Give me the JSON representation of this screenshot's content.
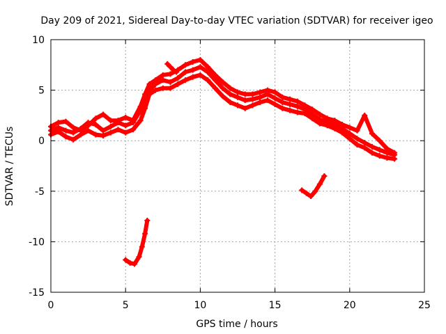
{
  "chart_data": {
    "type": "scatter",
    "title": "Day 209 of 2021, Sidereal Day-to-day VTEC variation (SDTVAR) for receiver igeo",
    "xlabel": "GPS time / hours",
    "ylabel": "SDTVAR / TECUs",
    "xlim": [
      0,
      25
    ],
    "ylim": [
      -15,
      10
    ],
    "xticks": [
      0,
      5,
      10,
      15,
      20,
      25
    ],
    "yticks": [
      -15,
      -10,
      -5,
      0,
      5,
      10
    ],
    "xtick_labels": [
      "0",
      "5",
      "10",
      "15",
      "20",
      "25"
    ],
    "ytick_labels": [
      "-15",
      "-10",
      "-5",
      "0",
      "5",
      "10"
    ],
    "grid": true,
    "marker": "plus",
    "color": "#ff0000",
    "series": [
      {
        "name": "main-trace-a",
        "x": [
          0.0,
          0.5,
          1.0,
          1.5,
          2.0,
          2.5,
          3.0,
          3.5,
          4.0,
          4.5,
          5.0,
          5.5,
          6.0,
          6.3,
          6.6,
          7.0,
          7.5,
          8.0,
          8.5,
          9.0,
          9.5,
          10.0,
          10.5,
          11.0,
          11.5,
          12.0,
          12.5,
          13.0,
          13.5,
          14.0,
          14.5,
          15.0,
          15.5,
          16.0,
          16.5,
          17.0,
          17.5,
          18.0,
          18.5,
          19.0,
          19.5,
          20.0,
          20.5,
          21.0,
          21.5,
          22.0,
          22.5,
          23.0
        ],
        "y": [
          1.0,
          1.3,
          1.0,
          0.8,
          1.2,
          1.8,
          1.6,
          1.0,
          1.4,
          1.8,
          1.5,
          1.8,
          3.0,
          4.0,
          5.0,
          5.6,
          6.0,
          5.8,
          6.2,
          6.8,
          7.0,
          7.3,
          6.8,
          6.0,
          5.2,
          4.6,
          4.3,
          4.0,
          4.1,
          4.3,
          4.6,
          4.2,
          3.8,
          3.6,
          3.4,
          3.1,
          2.6,
          2.1,
          1.8,
          1.6,
          1.2,
          0.7,
          0.2,
          -0.2,
          -0.6,
          -0.9,
          -1.2,
          -1.4
        ]
      },
      {
        "name": "main-trace-b",
        "x": [
          0.0,
          0.5,
          1.0,
          1.5,
          2.0,
          2.5,
          3.0,
          3.5,
          4.0,
          4.5,
          5.0,
          5.5,
          6.0,
          6.3,
          6.6,
          7.0,
          7.5,
          8.0,
          8.5,
          9.0,
          9.5,
          10.0,
          10.5,
          11.0,
          11.5,
          12.0,
          12.5,
          13.0,
          13.5,
          14.0,
          14.5,
          15.0,
          15.5,
          16.0,
          16.5,
          17.0,
          17.5,
          18.0,
          18.5,
          19.0,
          19.5,
          20.0,
          20.5,
          21.0,
          21.5,
          22.0,
          22.5,
          23.0
        ],
        "y": [
          0.6,
          0.9,
          0.4,
          0.1,
          0.6,
          1.0,
          0.6,
          0.5,
          0.8,
          1.1,
          0.8,
          1.1,
          2.0,
          3.2,
          4.6,
          5.0,
          5.2,
          5.2,
          5.6,
          6.0,
          6.3,
          6.5,
          6.0,
          5.2,
          4.4,
          3.8,
          3.5,
          3.2,
          3.5,
          3.8,
          4.0,
          3.6,
          3.2,
          3.0,
          2.8,
          2.7,
          2.2,
          1.7,
          1.5,
          1.2,
          0.8,
          0.2,
          -0.4,
          -0.7,
          -1.2,
          -1.5,
          -1.7,
          -1.8
        ]
      },
      {
        "name": "main-trace-c",
        "x": [
          0.0,
          0.5,
          1.0,
          1.5,
          2.0,
          2.5,
          3.0,
          3.5,
          4.0,
          4.5,
          5.0,
          5.5,
          6.0,
          6.3,
          6.6,
          7.0,
          7.5,
          8.0,
          8.5,
          9.0,
          9.5,
          10.0,
          10.5,
          11.0,
          11.5,
          12.0,
          12.5,
          13.0,
          13.5,
          14.0,
          14.5,
          15.0,
          15.5,
          16.0,
          16.5,
          17.0,
          17.5,
          18.0,
          18.5,
          19.0,
          19.5,
          20.0,
          20.5,
          21.0,
          21.5,
          22.0,
          22.5,
          23.0
        ],
        "y": [
          1.4,
          1.8,
          1.9,
          1.3,
          1.0,
          1.5,
          2.2,
          2.6,
          2.0,
          2.0,
          2.3,
          2.0,
          3.4,
          4.6,
          5.6,
          6.0,
          6.5,
          6.6,
          7.0,
          7.5,
          7.8,
          8.0,
          7.3,
          6.5,
          5.8,
          5.2,
          4.8,
          4.6,
          4.6,
          4.8,
          5.0,
          4.8,
          4.3,
          4.1,
          3.9,
          3.5,
          3.1,
          2.6,
          2.2,
          2.0,
          1.6,
          1.3,
          1.0,
          2.5,
          0.7,
          0.0,
          -0.8,
          -1.2
        ]
      },
      {
        "name": "dip-left",
        "x": [
          5.0,
          5.3,
          5.6,
          5.9,
          6.1,
          6.3,
          6.45
        ],
        "y": [
          -11.8,
          -12.1,
          -12.2,
          -11.5,
          -10.5,
          -9.2,
          -7.9
        ]
      },
      {
        "name": "dip-right",
        "x": [
          16.8,
          17.1,
          17.4,
          17.7,
          18.0,
          18.3
        ],
        "y": [
          -4.9,
          -5.2,
          -5.5,
          -5.0,
          -4.3,
          -3.5
        ]
      },
      {
        "name": "fragment-8h",
        "x": [
          7.8,
          8.0,
          8.2,
          8.4
        ],
        "y": [
          7.6,
          7.3,
          7.0,
          6.8
        ]
      }
    ]
  }
}
